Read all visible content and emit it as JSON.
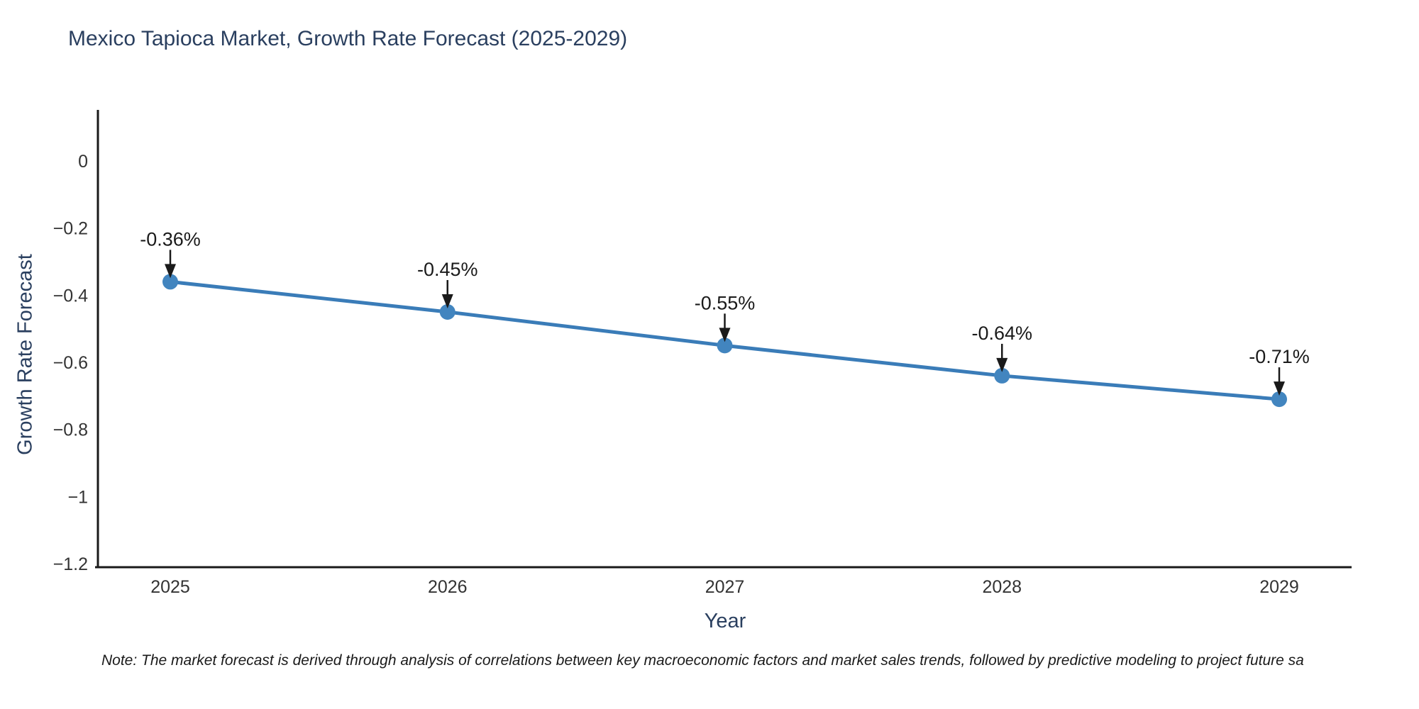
{
  "title": "Mexico Tapioca Market, Growth Rate Forecast (2025-2029)",
  "footnote": "Note: The market forecast is derived through analysis of correlations between key macroeconomic factors and market sales trends, followed by predictive modeling to project future sa",
  "chart_data": {
    "type": "line",
    "title": "Mexico Tapioca Market, Growth Rate Forecast (2025-2029)",
    "xlabel": "Year",
    "ylabel": "Growth Rate Forecast",
    "x": [
      2025,
      2026,
      2027,
      2028,
      2029
    ],
    "y": [
      -0.36,
      -0.45,
      -0.55,
      -0.64,
      -0.71
    ],
    "point_labels": [
      "-0.36%",
      "-0.45%",
      "-0.55%",
      "-0.64%",
      "-0.71%"
    ],
    "x_tick_labels": [
      "2025",
      "2026",
      "2027",
      "2028",
      "2029"
    ],
    "y_tick_labels": [
      "0",
      "−0.2",
      "−0.4",
      "−0.6",
      "−0.8",
      "−1",
      "−1.2"
    ],
    "y_tick_values": [
      0,
      -0.2,
      -0.4,
      -0.6,
      -0.8,
      -1,
      -1.2
    ],
    "ylim": [
      -1.2,
      0.15
    ],
    "grid": false,
    "legend": "none",
    "series_name": "Growth Rate Forecast",
    "colors": {
      "line": "#3a7cb8",
      "marker": "#4285bf",
      "annotation_text": "#1a1a1a",
      "annotation_arrow": "#1a1a1a",
      "axis_line": "#1a1a1a",
      "tick_text": "#333333",
      "title_text": "#2a3f5f",
      "background": "#ffffff"
    }
  }
}
